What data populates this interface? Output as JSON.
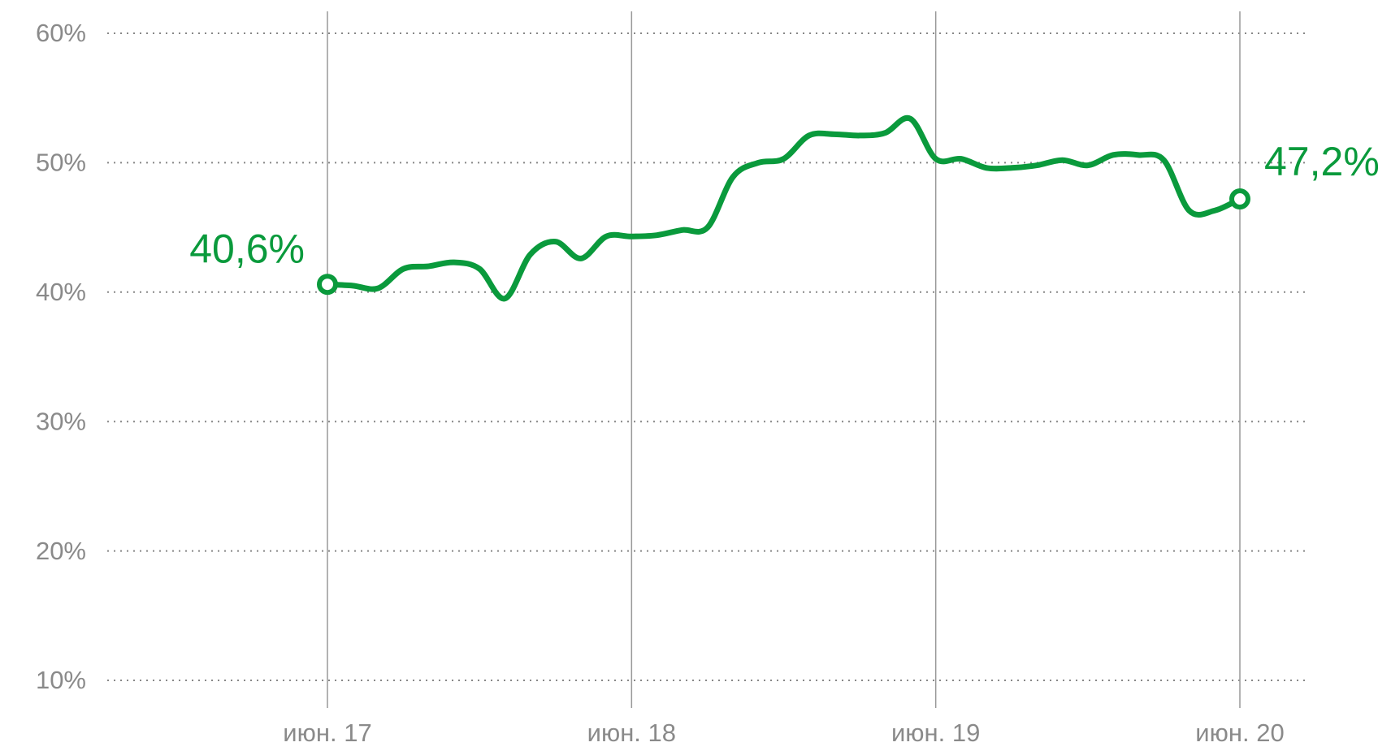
{
  "chart_data": {
    "type": "line",
    "categories": [
      "июн. 17",
      null,
      null,
      null,
      null,
      null,
      null,
      null,
      null,
      null,
      null,
      null,
      "июн. 18",
      null,
      null,
      null,
      null,
      null,
      null,
      null,
      null,
      null,
      null,
      null,
      "июн. 19",
      null,
      null,
      null,
      null,
      null,
      null,
      null,
      null,
      null,
      null,
      null,
      "июн. 20"
    ],
    "values": [
      40.6,
      40.5,
      40.3,
      41.8,
      42.0,
      42.3,
      41.8,
      39.5,
      42.9,
      43.9,
      42.6,
      44.3,
      44.3,
      44.4,
      44.8,
      45.0,
      48.9,
      50.0,
      50.3,
      52.1,
      52.2,
      52.1,
      52.3,
      53.4,
      50.3,
      50.3,
      49.6,
      49.6,
      49.8,
      50.2,
      49.8,
      50.6,
      50.6,
      50.2,
      46.3,
      46.3,
      47.2
    ],
    "value_labels": [
      "40,6%",
      null,
      null,
      null,
      null,
      null,
      null,
      null,
      null,
      null,
      null,
      null,
      null,
      null,
      null,
      null,
      null,
      null,
      null,
      null,
      null,
      null,
      null,
      null,
      null,
      null,
      null,
      null,
      null,
      null,
      null,
      null,
      null,
      null,
      null,
      null,
      "47,2%"
    ],
    "color": "#0a9a3c",
    "ylim": [
      10,
      60
    ],
    "yticks": [
      {
        "value": 10,
        "label": "10%"
      },
      {
        "value": 20,
        "label": "20%"
      },
      {
        "value": 30,
        "label": "30%"
      },
      {
        "value": 40,
        "label": "40%"
      },
      {
        "value": 50,
        "label": "50%"
      },
      {
        "value": 60,
        "label": "60%"
      }
    ],
    "grid": true
  }
}
